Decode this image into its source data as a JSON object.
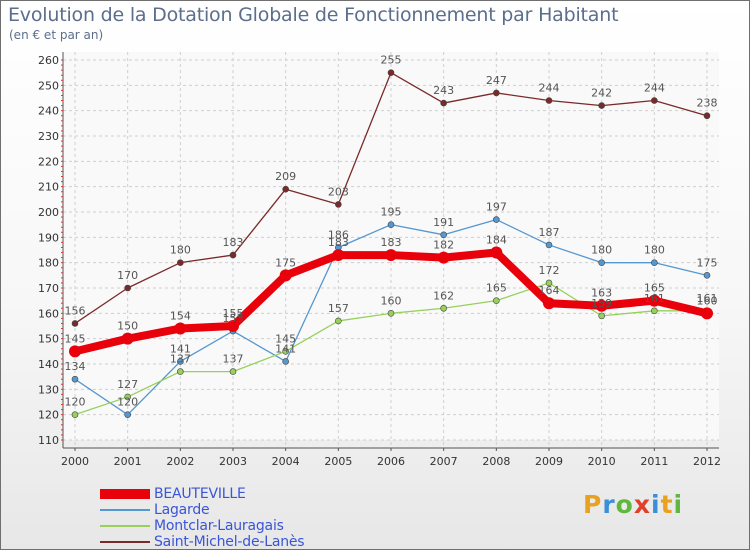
{
  "header": {
    "title": "Evolution de la Dotation Globale de Fonctionnement par Habitant",
    "subtitle": "(en € et par an)"
  },
  "logo": {
    "letters": [
      "P",
      "r",
      "o",
      "x",
      "i",
      "t",
      "i"
    ],
    "colors": [
      "#e8a21d",
      "#3b8fd8",
      "#5db83c",
      "#e23f2b",
      "#3b8fd8",
      "#e8a21d",
      "#5db83c"
    ]
  },
  "chart_data": {
    "type": "line",
    "title": "Evolution de la Dotation Globale de Fonctionnement par Habitant",
    "subtitle": "(en € et par an)",
    "xlabel": "",
    "ylabel": "",
    "x": [
      "2000",
      "2001",
      "2002",
      "2003",
      "2004",
      "2005",
      "2006",
      "2007",
      "2008",
      "2009",
      "2010",
      "2011",
      "2012"
    ],
    "ylim": [
      110,
      260
    ],
    "yticks": [
      110,
      120,
      130,
      140,
      150,
      160,
      170,
      180,
      190,
      200,
      210,
      220,
      230,
      240,
      250,
      260
    ],
    "grid": true,
    "legend_position": "bottom-left",
    "series": [
      {
        "name": "BEAUTEVILLE",
        "color": "#e8000b",
        "emphasis": true,
        "values": [
          145,
          150,
          154,
          155,
          175,
          183,
          183,
          182,
          184,
          164,
          163,
          165,
          160
        ]
      },
      {
        "name": "Lagarde",
        "color": "#5597cf",
        "emphasis": false,
        "values": [
          134,
          120,
          141,
          153,
          141,
          186,
          195,
          191,
          197,
          187,
          180,
          180,
          175
        ]
      },
      {
        "name": "Montclar-Lauragais",
        "color": "#97d05b",
        "emphasis": false,
        "values": [
          120,
          127,
          137,
          137,
          145,
          157,
          160,
          162,
          165,
          172,
          159,
          161,
          161
        ]
      },
      {
        "name": "Saint-Michel-de-Lanès",
        "color": "#7a2a2a",
        "emphasis": false,
        "values": [
          156,
          170,
          180,
          183,
          209,
          203,
          255,
          243,
          247,
          244,
          242,
          244,
          238
        ]
      }
    ]
  }
}
